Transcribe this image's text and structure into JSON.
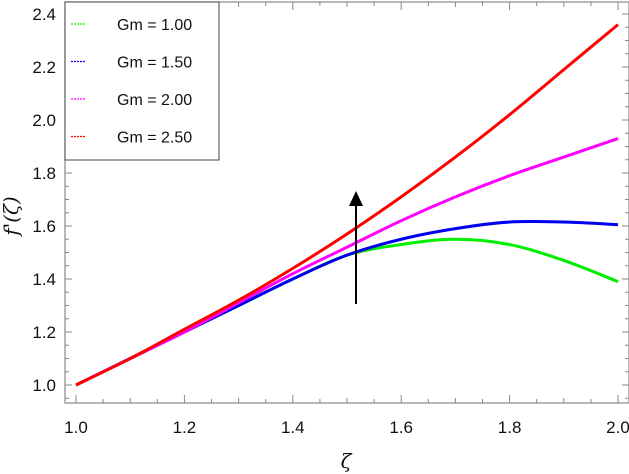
{
  "chart_data": {
    "type": "line",
    "title": "",
    "xlabel": "ζ",
    "ylabel": "f'(ζ)",
    "xlim": [
      1.0,
      2.0
    ],
    "ylim": [
      0.93,
      2.44
    ],
    "x_ticks": [
      "1.0",
      "1.2",
      "1.4",
      "1.6",
      "1.8",
      "2.0"
    ],
    "y_ticks": [
      "1.0",
      "1.2",
      "1.4",
      "1.6",
      "1.8",
      "2.0",
      "2.2",
      "2.4"
    ],
    "grid": false,
    "legend_position": "upper left",
    "x": [
      1.0,
      1.1,
      1.2,
      1.3,
      1.4,
      1.5,
      1.6,
      1.7,
      1.8,
      1.9,
      2.0
    ],
    "series": [
      {
        "name": "Gm = 1.00",
        "color": "#00ee00",
        "values": [
          1.0,
          1.1,
          1.2,
          1.3,
          1.4,
          1.49,
          1.53,
          1.55,
          1.53,
          1.47,
          1.39
        ]
      },
      {
        "name": "Gm = 1.50",
        "color": "#0000ee",
        "values": [
          1.0,
          1.1,
          1.2,
          1.3,
          1.4,
          1.49,
          1.55,
          1.59,
          1.615,
          1.615,
          1.605
        ]
      },
      {
        "name": "Gm = 2.00",
        "color": "#ff00ff",
        "values": [
          1.0,
          1.1,
          1.2,
          1.31,
          1.42,
          1.52,
          1.62,
          1.71,
          1.79,
          1.86,
          1.93
        ]
      },
      {
        "name": "Gm = 2.50",
        "color": "#ff0000",
        "values": [
          1.0,
          1.1,
          1.21,
          1.32,
          1.44,
          1.57,
          1.71,
          1.86,
          2.02,
          2.19,
          2.36
        ]
      }
    ],
    "annotations": [
      {
        "type": "arrow",
        "direction": "up",
        "x": 1.52,
        "y_from": 1.3,
        "y_to": 1.8,
        "meaning": "increasing Gm"
      }
    ]
  }
}
